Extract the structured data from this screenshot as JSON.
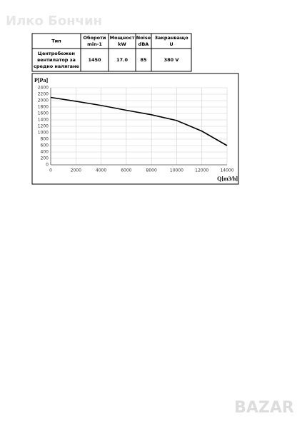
{
  "watermark": "Илко Бончин",
  "logo": "BAZAR",
  "table": {
    "header": [
      [
        "Тип"
      ],
      [
        "Обороти",
        "min-1"
      ],
      [
        "Мощност",
        "kW"
      ],
      [
        "Noise",
        "dBA"
      ],
      [
        "Закранващо",
        "U"
      ]
    ],
    "rows": [
      [
        [
          "Центробежен",
          "вентилатор за",
          "средно налягане"
        ],
        [
          "1450"
        ],
        [
          "17.0"
        ],
        [
          "85"
        ],
        [
          "380 V"
        ]
      ]
    ]
  },
  "chart_data": {
    "type": "line",
    "ylabel": "P[Pa]",
    "xlabel": "Q[m3/h]",
    "x": [
      0,
      2000,
      4000,
      6000,
      8000,
      10000,
      12000,
      14000
    ],
    "series": [
      {
        "name": null,
        "color": "#000000",
        "values": [
          2100,
          1980,
          1850,
          1700,
          1560,
          1380,
          1050,
          600
        ]
      }
    ],
    "xlim": [
      0,
      14000
    ],
    "ylim": [
      0,
      2400
    ],
    "xticks": [
      0,
      2000,
      4000,
      6000,
      8000,
      10000,
      12000,
      14000
    ],
    "yticks": [
      0,
      200,
      400,
      600,
      800,
      1000,
      1200,
      1400,
      1600,
      1800,
      2000,
      2200,
      2400
    ],
    "grid": true
  }
}
